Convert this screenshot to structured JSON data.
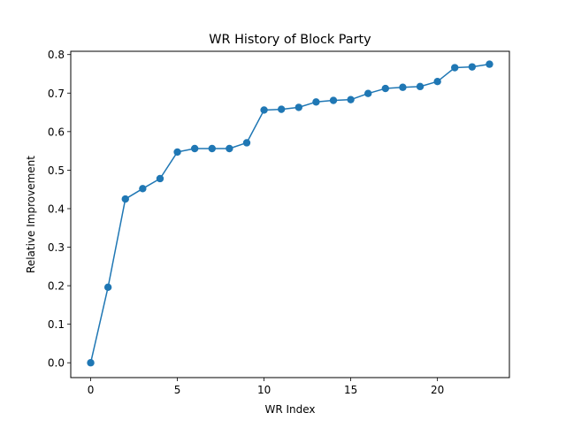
{
  "chart_data": {
    "type": "line",
    "title": "WR History of Block Party",
    "xlabel": "WR Index",
    "ylabel": "Relative Improvement",
    "xlim": [
      -1.15,
      24.15
    ],
    "ylim": [
      -0.0385,
      0.8085
    ],
    "x_ticks": [
      0,
      5,
      10,
      15,
      20
    ],
    "y_ticks": [
      0.0,
      0.1,
      0.2,
      0.3,
      0.4,
      0.5,
      0.6,
      0.7,
      0.8
    ],
    "grid": false,
    "legend": "none",
    "color": "#1f77b4",
    "series": [
      {
        "x": [
          0,
          1,
          2,
          3,
          4,
          5,
          6,
          7,
          8,
          9,
          10,
          11,
          12,
          13,
          14,
          15,
          16,
          17,
          18,
          19,
          20,
          21,
          22,
          23
        ],
        "values": [
          0.0,
          0.196,
          0.425,
          0.452,
          0.478,
          0.547,
          0.556,
          0.556,
          0.556,
          0.571,
          0.656,
          0.658,
          0.663,
          0.677,
          0.681,
          0.683,
          0.699,
          0.712,
          0.715,
          0.717,
          0.73,
          0.766,
          0.768,
          0.775
        ]
      }
    ]
  }
}
